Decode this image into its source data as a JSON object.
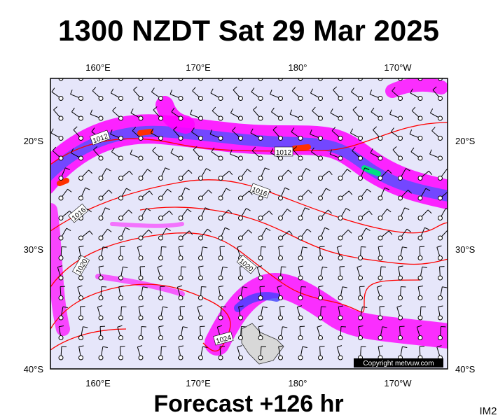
{
  "header": {
    "title": "1300 NZDT Sat 29 Mar 2025"
  },
  "map": {
    "top_labels": [
      "160°E",
      "170°E",
      "180°",
      "170°W"
    ],
    "bottom_labels": [
      "160°E",
      "170°E",
      "180°",
      "170°W"
    ],
    "left_labels": [
      "20°S",
      "30°S",
      "40°S"
    ],
    "right_labels": [
      "20°S",
      "30°S",
      "40°S"
    ],
    "isobar_labels": [
      "1012",
      "1012",
      "1016",
      "1016",
      "1020",
      "1020",
      "1024"
    ],
    "copyright": "Copyright metvuw.com"
  },
  "footer": {
    "forecast": "Forecast +126 hr",
    "code": "IM2"
  }
}
